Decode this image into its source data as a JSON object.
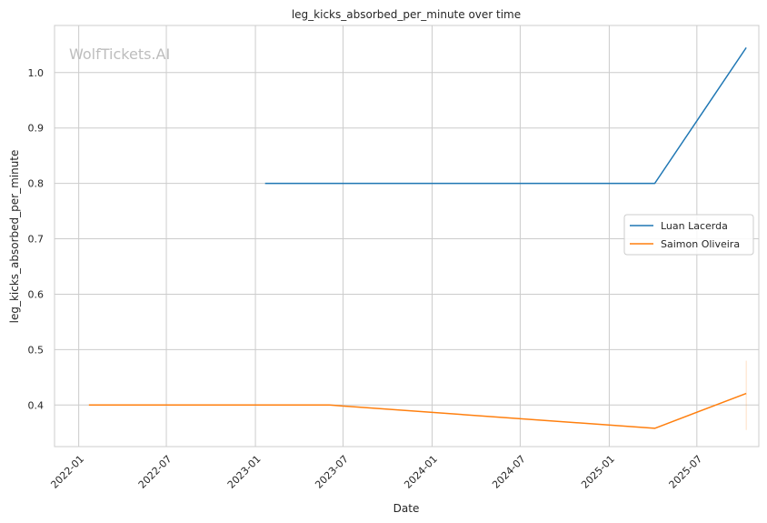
{
  "watermark": "WolfTickets.AI",
  "chart_data": {
    "type": "line",
    "title": "leg_kicks_absorbed_per_minute over time",
    "xlabel": "Date",
    "ylabel": "leg_kicks_absorbed_per_minute",
    "x_ticks": [
      "2022-01",
      "2022-07",
      "2023-01",
      "2023-07",
      "2024-01",
      "2024-07",
      "2025-01",
      "2025-07"
    ],
    "y_ticks": [
      "0.4",
      "0.5",
      "0.6",
      "0.7",
      "0.8",
      "0.9",
      "1.0"
    ],
    "xlim": [
      "2021-11-12",
      "2025-11-06"
    ],
    "ylim": [
      0.325,
      1.085
    ],
    "grid": true,
    "legend_position": "center-right",
    "series": [
      {
        "name": "Luan Lacerda",
        "color": "#1f77b4",
        "x": [
          "2023-01-21",
          "2025-04-05",
          "2025-10-11"
        ],
        "y": [
          0.8,
          0.8,
          1.045
        ]
      },
      {
        "name": "Saimon Oliveira",
        "color": "#ff7f0e",
        "x": [
          "2022-01-22",
          "2023-06-03",
          "2025-04-05",
          "2025-10-11"
        ],
        "y": [
          0.4,
          0.4,
          0.358,
          0.421
        ],
        "band": {
          "x": "2025-10-11",
          "low": 0.355,
          "high": 0.48
        }
      }
    ]
  }
}
